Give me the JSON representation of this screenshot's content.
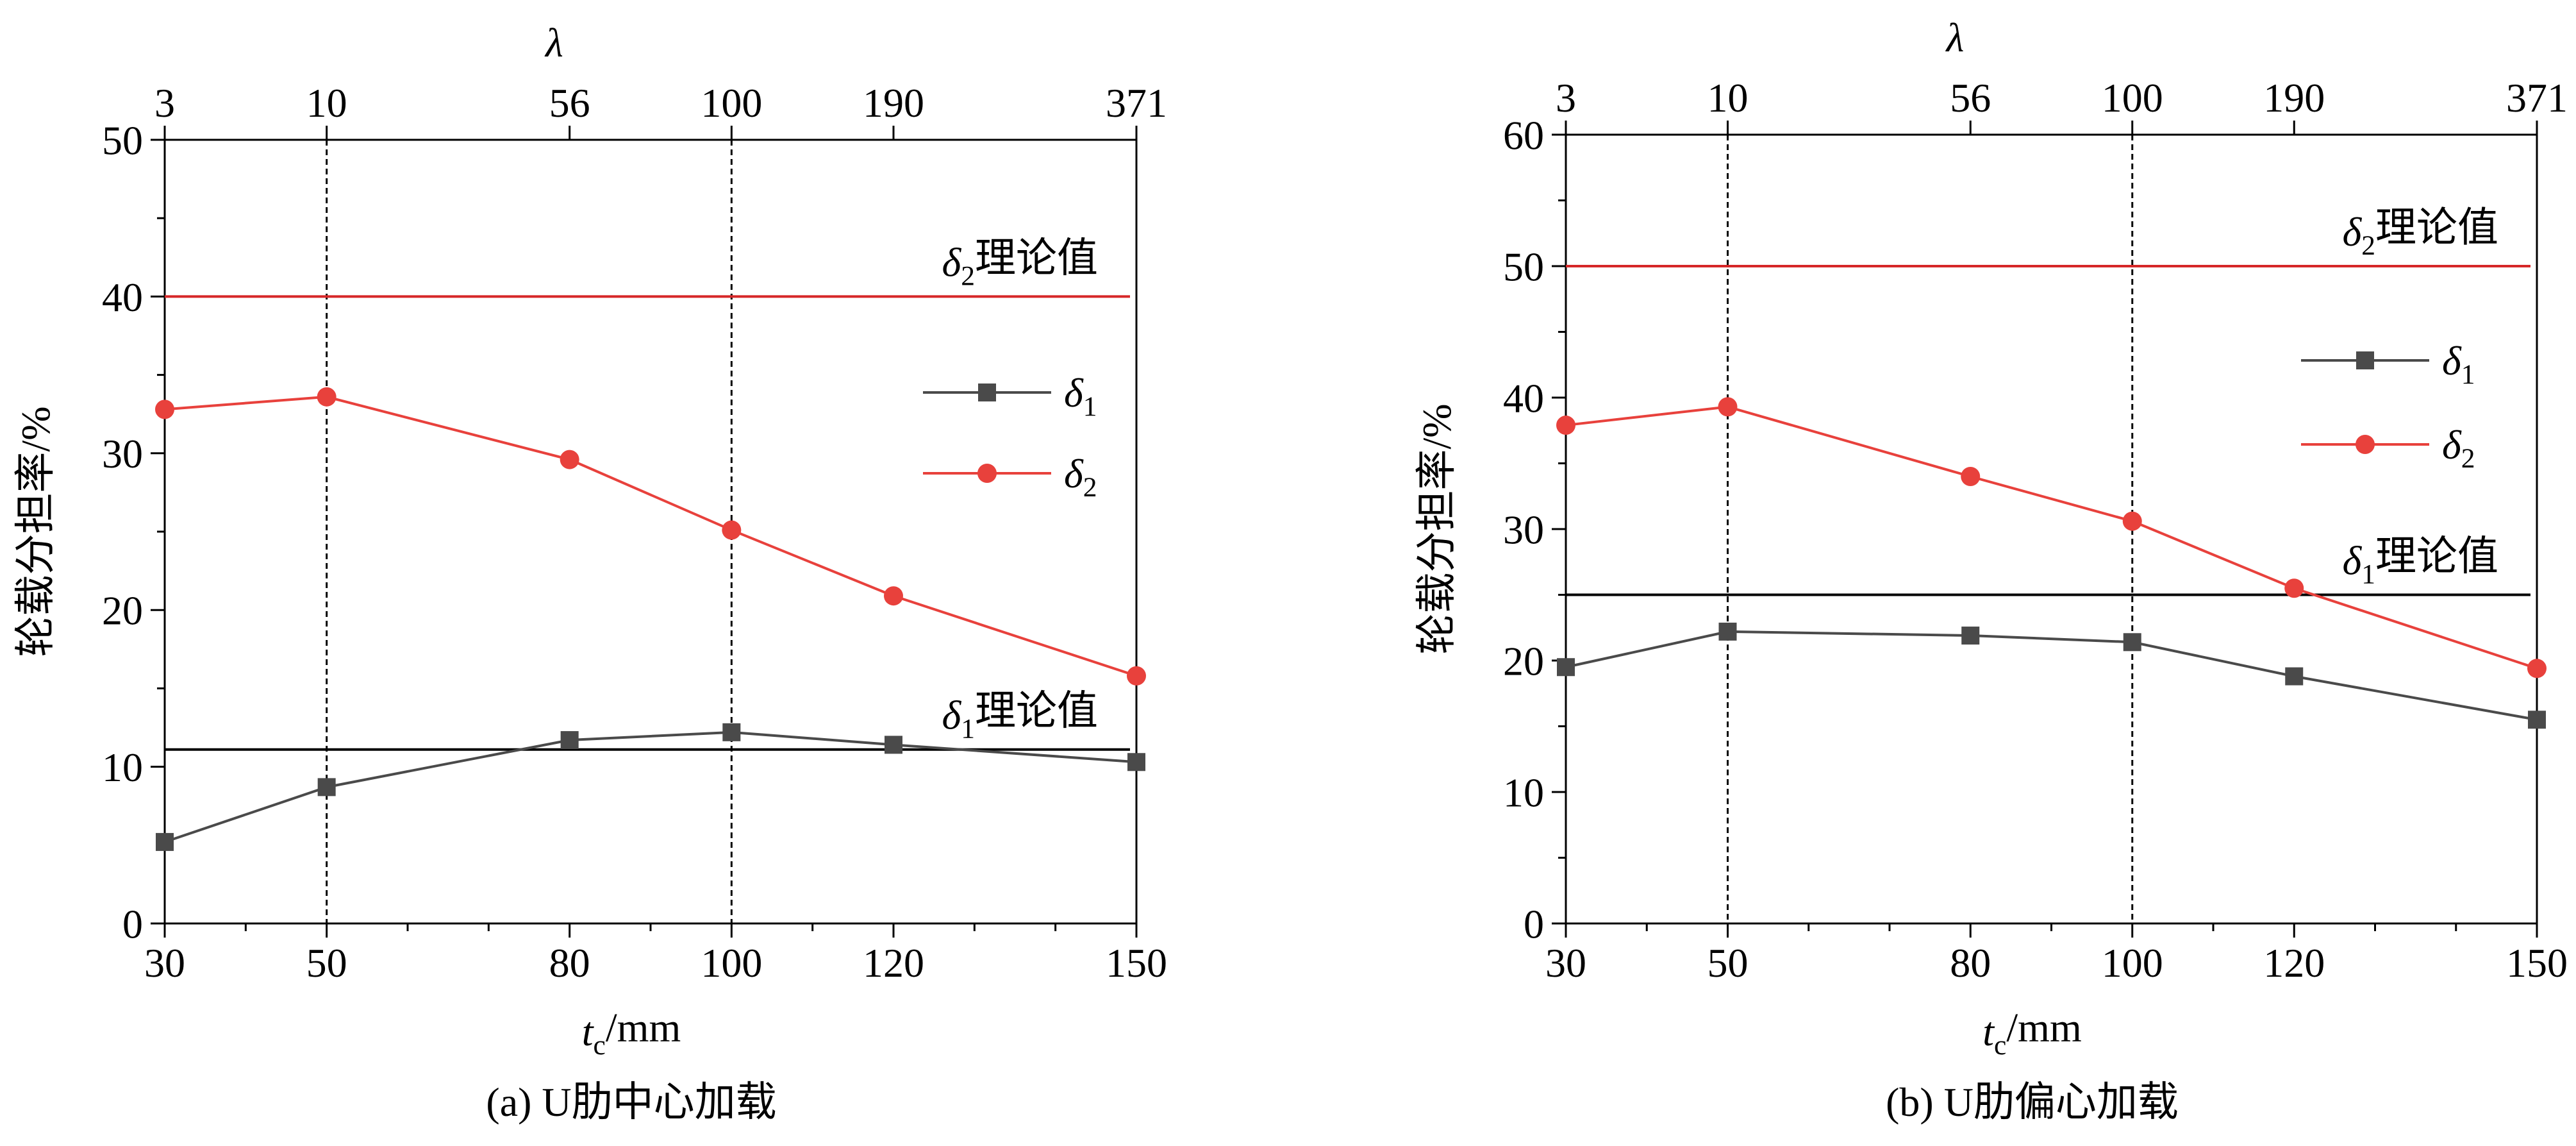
{
  "chart_data": [
    {
      "type": "line",
      "title": "",
      "caption": "(a) U肋中心加载",
      "xlabel": {
        "italic": "t",
        "sub": "c",
        "rest": "/mm"
      },
      "ylabel": "轮载分担率/%",
      "top_axis_label": "λ",
      "x": [
        30,
        50,
        80,
        100,
        120,
        150
      ],
      "xlim": [
        30,
        150
      ],
      "xticks": [
        30,
        50,
        80,
        100,
        120,
        150
      ],
      "top_ticks": [
        {
          "x": 30,
          "label": "3"
        },
        {
          "x": 50,
          "label": "10"
        },
        {
          "x": 80,
          "label": "56"
        },
        {
          "x": 100,
          "label": "100"
        },
        {
          "x": 120,
          "label": "190"
        },
        {
          "x": 150,
          "label": "371"
        }
      ],
      "ylim": [
        0,
        50
      ],
      "yticks": [
        0,
        10,
        20,
        30,
        40,
        50
      ],
      "grid": false,
      "series": [
        {
          "name": "δ1",
          "symbol": "δ",
          "sub": "1",
          "color": "#4a4a4a",
          "marker": "square",
          "values": [
            5.2,
            8.7,
            11.7,
            12.2,
            11.4,
            10.3
          ]
        },
        {
          "name": "δ2",
          "symbol": "δ",
          "sub": "2",
          "color": "#e8413c",
          "marker": "circle",
          "values": [
            32.8,
            33.6,
            29.6,
            25.1,
            20.9,
            15.8
          ]
        }
      ],
      "reference_lines": [
        {
          "y": 40,
          "color": "#d62728",
          "symbol": "δ",
          "sub": "2",
          "text": "理论值"
        },
        {
          "y": 11.1,
          "color": "#000000",
          "symbol": "δ",
          "sub": "1",
          "text": "理论值"
        }
      ],
      "vertical_lines": [
        50,
        100
      ],
      "legend_position": "right-middle"
    },
    {
      "type": "line",
      "title": "",
      "caption": "(b) U肋偏心加载",
      "xlabel": {
        "italic": "t",
        "sub": "c",
        "rest": "/mm"
      },
      "ylabel": "轮载分担率/%",
      "top_axis_label": "λ",
      "x": [
        30,
        50,
        80,
        100,
        120,
        150
      ],
      "xlim": [
        30,
        150
      ],
      "xticks": [
        30,
        50,
        80,
        100,
        120,
        150
      ],
      "top_ticks": [
        {
          "x": 30,
          "label": "3"
        },
        {
          "x": 50,
          "label": "10"
        },
        {
          "x": 80,
          "label": "56"
        },
        {
          "x": 100,
          "label": "100"
        },
        {
          "x": 120,
          "label": "190"
        },
        {
          "x": 150,
          "label": "371"
        }
      ],
      "ylim": [
        0,
        60
      ],
      "yticks": [
        0,
        10,
        20,
        30,
        40,
        50,
        60
      ],
      "grid": false,
      "series": [
        {
          "name": "δ1",
          "symbol": "δ",
          "sub": "1",
          "color": "#4a4a4a",
          "marker": "square",
          "values": [
            19.5,
            22.2,
            21.9,
            21.4,
            18.8,
            15.5
          ]
        },
        {
          "name": "δ2",
          "symbol": "δ",
          "sub": "2",
          "color": "#e8413c",
          "marker": "circle",
          "values": [
            37.9,
            39.3,
            34.0,
            30.6,
            25.5,
            19.4
          ]
        }
      ],
      "reference_lines": [
        {
          "y": 50,
          "color": "#d62728",
          "symbol": "δ",
          "sub": "2",
          "text": "理论值"
        },
        {
          "y": 25,
          "color": "#000000",
          "symbol": "δ",
          "sub": "1",
          "text": "理论值"
        }
      ],
      "vertical_lines": [
        50,
        100
      ],
      "legend_position": "right-upper"
    }
  ]
}
